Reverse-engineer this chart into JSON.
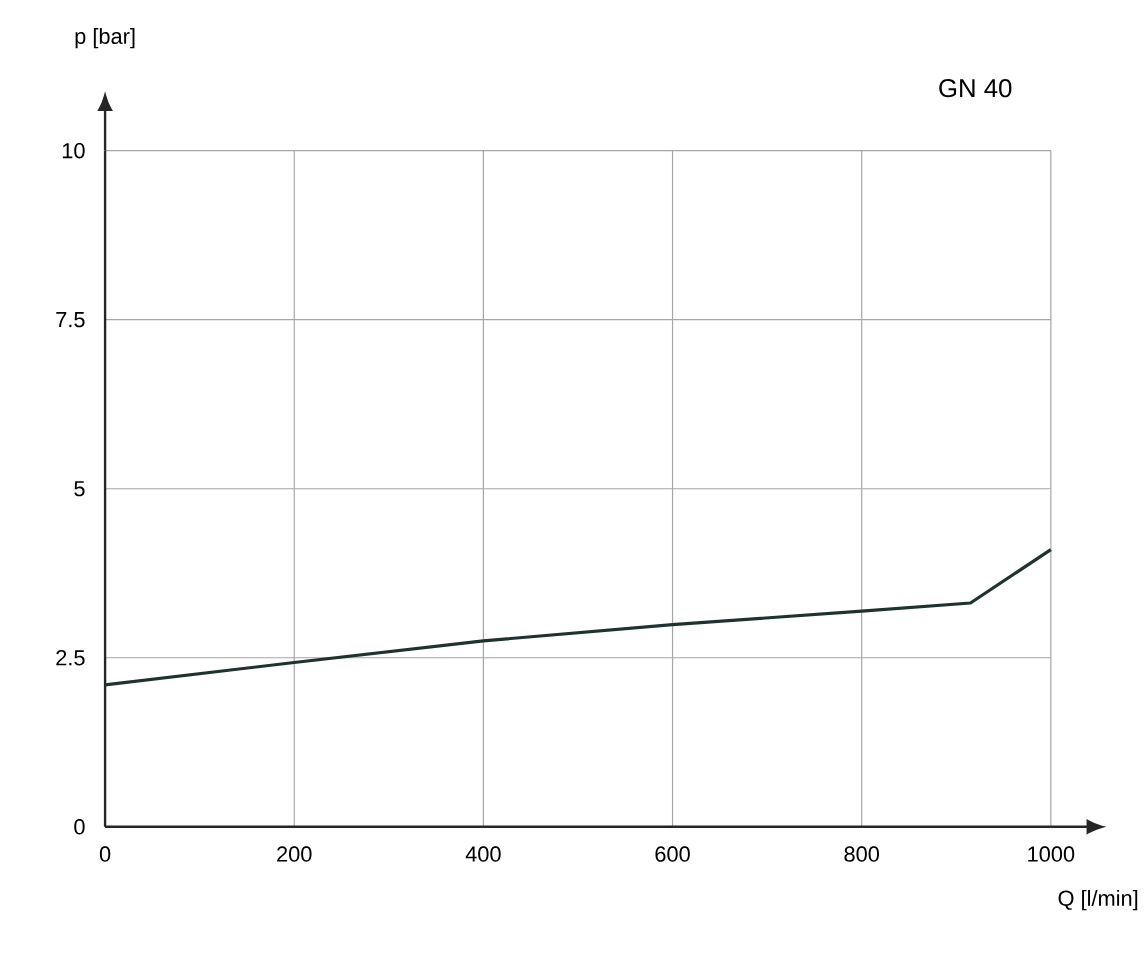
{
  "chart_data": {
    "type": "line",
    "title": "GN 40",
    "xlabel": "Q [l/min]",
    "ylabel": "p [bar]",
    "x": [
      0,
      200,
      400,
      600,
      800,
      915,
      1000
    ],
    "series": [
      {
        "color": "#1e3330",
        "values": [
          2.1,
          2.43,
          2.75,
          2.99,
          3.19,
          3.31,
          4.1
        ]
      }
    ],
    "xlim": [
      0,
      1000
    ],
    "ylim": [
      0,
      10
    ],
    "xticks": [
      0,
      200,
      400,
      600,
      800,
      1000
    ],
    "yticks": [
      0,
      {
        "value": 2.5,
        "label": "2.5"
      },
      5,
      {
        "value": 7.5,
        "label": "7.5"
      },
      10
    ],
    "grid": true,
    "marker": "none",
    "line_style": "solid"
  }
}
